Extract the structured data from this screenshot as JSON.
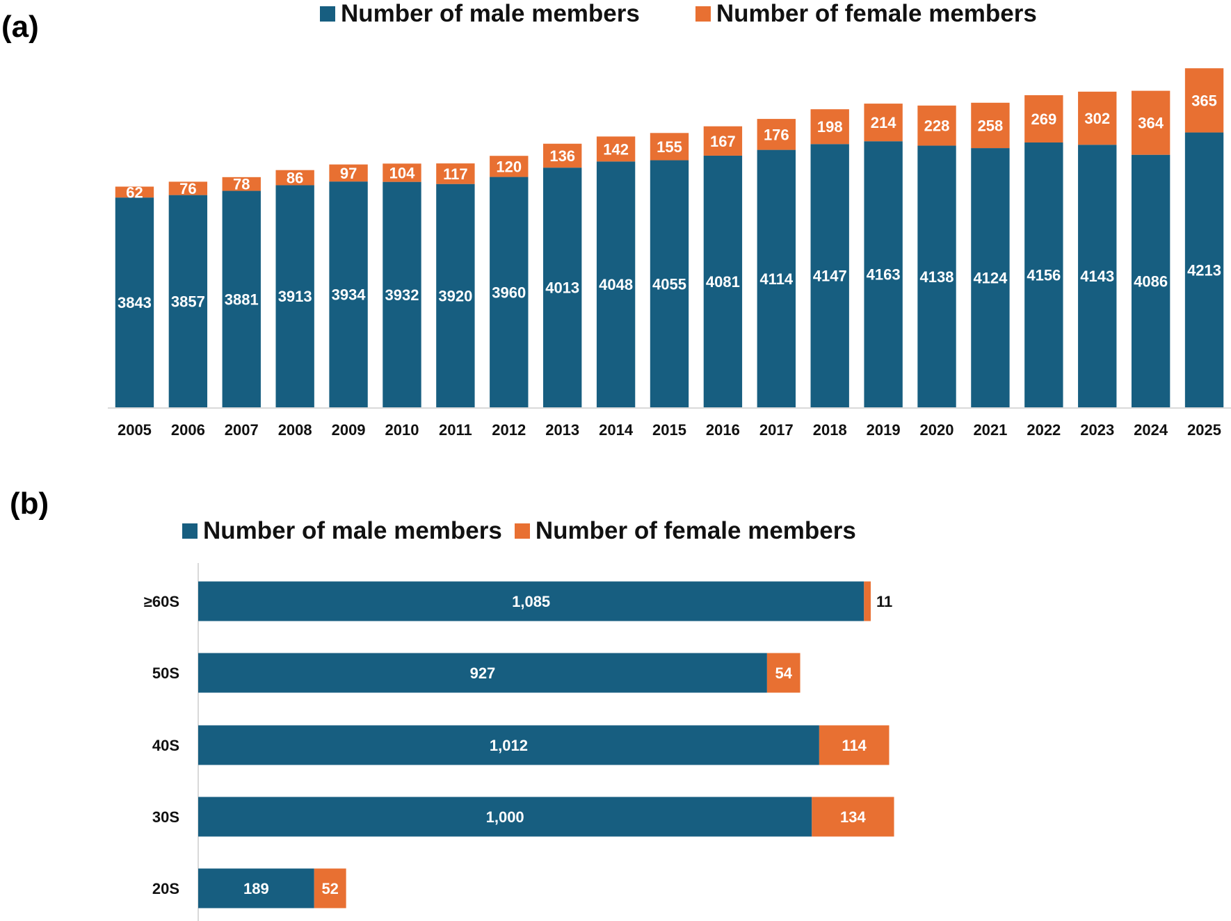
{
  "colors": {
    "male": "#175E80",
    "female": "#E87032",
    "axis": "#d9d9d9",
    "label_inside": "#ffffff",
    "label_outside": "#111111"
  },
  "panels": {
    "a": {
      "label": "(a)"
    },
    "b": {
      "label": "(b)"
    }
  },
  "chart_data": [
    {
      "id": "a",
      "type": "bar",
      "orientation": "vertical",
      "stacked": true,
      "title": "",
      "xlabel": "",
      "ylabel": "",
      "grid": false,
      "legend": {
        "placement": "top-center",
        "entries": [
          "Number of male members",
          "Number of female members"
        ]
      },
      "categories": [
        "2005",
        "2006",
        "2007",
        "2008",
        "2009",
        "2010",
        "2011",
        "2012",
        "2013",
        "2014",
        "2015",
        "2016",
        "2017",
        "2018",
        "2019",
        "2020",
        "2021",
        "2022",
        "2023",
        "2024",
        "2025"
      ],
      "series": [
        {
          "name": "Number of male members",
          "color": "#175E80",
          "values": [
            3843,
            3857,
            3881,
            3913,
            3934,
            3932,
            3920,
            3960,
            4013,
            4048,
            4055,
            4081,
            4114,
            4147,
            4163,
            4138,
            4124,
            4156,
            4143,
            4086,
            4213
          ]
        },
        {
          "name": "Number of female members",
          "color": "#E87032",
          "values": [
            62,
            76,
            78,
            86,
            97,
            104,
            117,
            120,
            136,
            142,
            155,
            167,
            176,
            198,
            214,
            228,
            258,
            269,
            302,
            364,
            365
          ]
        }
      ],
      "ylim": [
        2650,
        4650
      ],
      "y_axis_visible": false
    },
    {
      "id": "b",
      "type": "bar",
      "orientation": "horizontal",
      "stacked": true,
      "title": "",
      "xlabel": "",
      "ylabel": "",
      "grid": false,
      "legend": {
        "placement": "top-center",
        "entries": [
          "Number of male members",
          "Number of female members"
        ]
      },
      "categories": [
        "≥60S",
        "50S",
        "40S",
        "30S",
        "20S"
      ],
      "series": [
        {
          "name": "Number of male members",
          "color": "#175E80",
          "values": [
            1085,
            927,
            1012,
            1000,
            189
          ],
          "labels": [
            "1,085",
            "927",
            "1,012",
            "1,000",
            "189"
          ]
        },
        {
          "name": "Number of female members",
          "color": "#E87032",
          "values": [
            11,
            54,
            114,
            134,
            52
          ],
          "labels": [
            "11",
            "54",
            "114",
            "134",
            "52"
          ]
        }
      ],
      "xlim": [
        0,
        1200
      ],
      "x_axis_visible": false
    }
  ]
}
